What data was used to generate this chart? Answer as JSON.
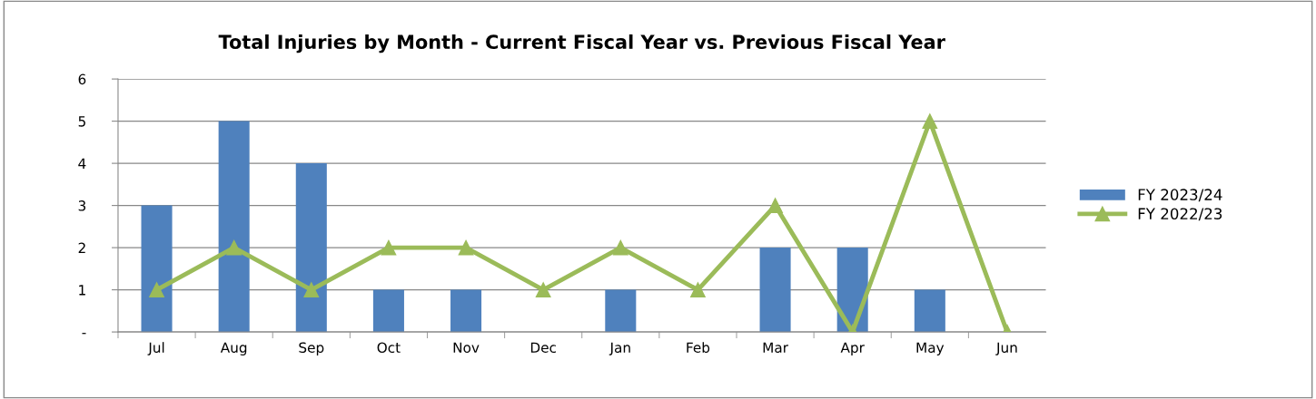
{
  "chart_data": {
    "type": "bar",
    "title": "Total Injuries by Month - Current Fiscal Year vs. Previous Fiscal Year",
    "categories": [
      "Jul",
      "Aug",
      "Sep",
      "Oct",
      "Nov",
      "Dec",
      "Jan",
      "Feb",
      "Mar",
      "Apr",
      "May",
      "Jun"
    ],
    "series": [
      {
        "name": "FY 2023/24",
        "color": "#4f81bd",
        "values": [
          3,
          5,
          4,
          1,
          1,
          0,
          1,
          0,
          2,
          2,
          1,
          null
        ]
      },
      {
        "name": "FY 2022/23",
        "type": "line",
        "color": "#9bbb59",
        "marker": "triangle",
        "values": [
          1,
          2,
          1,
          2,
          2,
          1,
          2,
          1,
          3,
          0,
          5,
          0
        ]
      }
    ],
    "ylim": [
      0,
      6
    ],
    "yticks": [
      {
        "value": 0,
        "label": "-"
      },
      1,
      2,
      3,
      4,
      5,
      6
    ],
    "grid": "y",
    "legend": "right"
  }
}
